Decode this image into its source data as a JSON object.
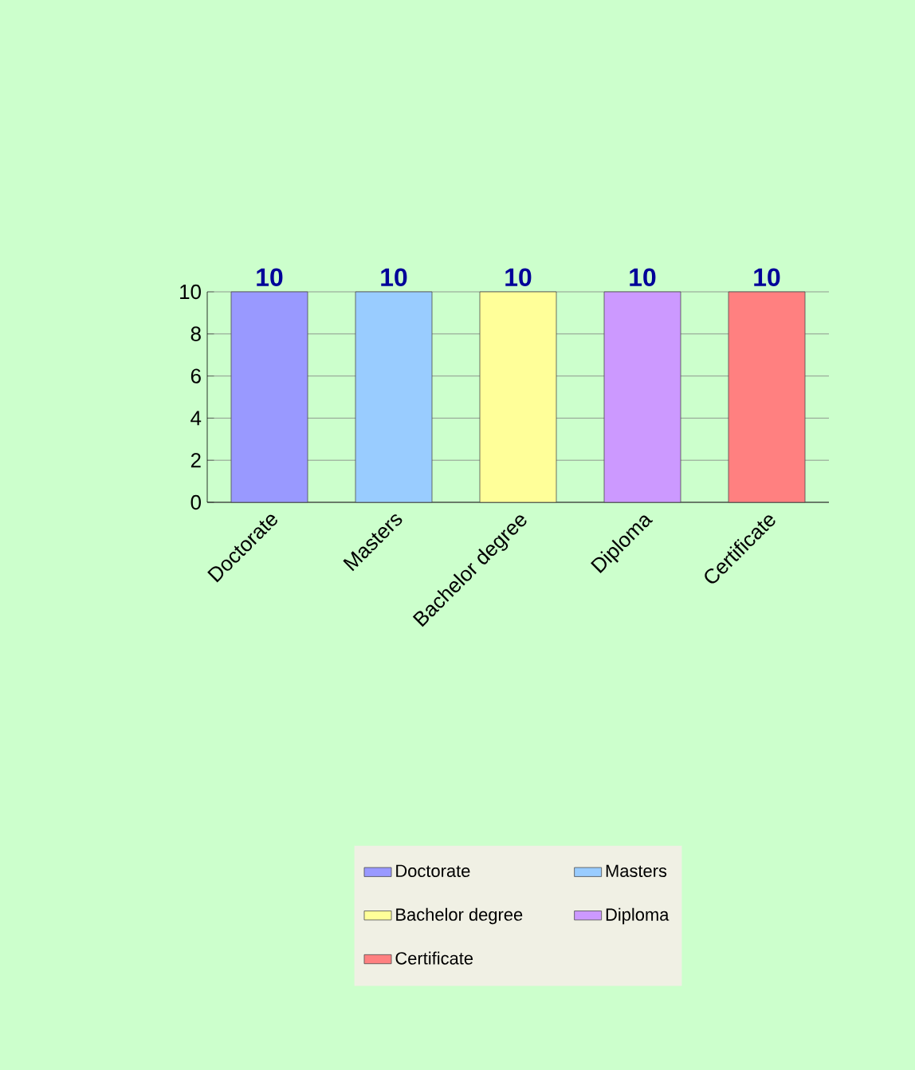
{
  "chart_data": {
    "type": "bar",
    "categories": [
      "Doctorate",
      "Masters",
      "Bachelor degree",
      "Diploma",
      "Certificate"
    ],
    "series": [
      {
        "name": "Doctorate",
        "color": "#9999ff",
        "values": [
          10,
          null,
          null,
          null,
          null
        ]
      },
      {
        "name": "Masters",
        "color": "#99ccff",
        "values": [
          null,
          10,
          null,
          null,
          null
        ]
      },
      {
        "name": "Bachelor degree",
        "color": "#ffff99",
        "values": [
          null,
          null,
          10,
          null,
          null
        ]
      },
      {
        "name": "Diploma",
        "color": "#cc99ff",
        "values": [
          null,
          null,
          null,
          10,
          null
        ]
      },
      {
        "name": "Certificate",
        "color": "#ff8080",
        "values": [
          null,
          null,
          null,
          null,
          10
        ]
      }
    ],
    "ylim": [
      0,
      10
    ],
    "yticks": [
      0,
      2,
      4,
      6,
      8,
      10
    ],
    "grid": "y",
    "data_labels": true,
    "legend": "bottom"
  }
}
